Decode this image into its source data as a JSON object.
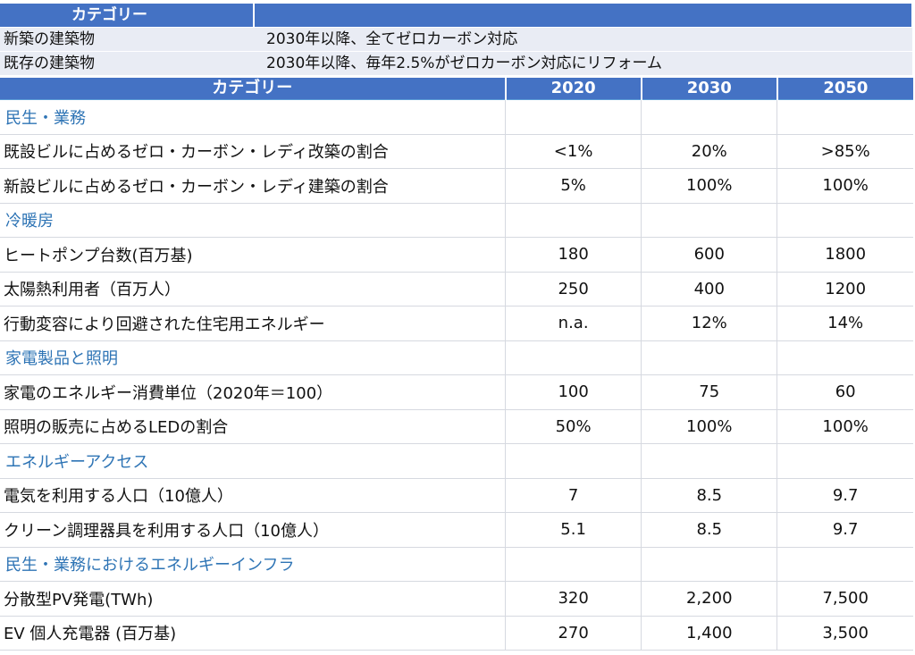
{
  "top_table": {
    "header": "カテゴリー",
    "rows": [
      {
        "label": "新築の建築物",
        "value": "2030年以降、全てゼロカーボン対応"
      },
      {
        "label": "既存の建築物",
        "value": "2030年以降、毎年2.5%がゼロカーボン対応にリフォーム"
      }
    ]
  },
  "main_table": {
    "headers": [
      "カテゴリー",
      "2020",
      "2030",
      "2050"
    ],
    "sections": [
      {
        "title": "民生・業務",
        "rows": [
          {
            "label": "既設ビルに占めるゼロ・カーボン・レディ改築の割合",
            "v2020": "<1%",
            "v2030": "20%",
            "v2050": ">85%"
          },
          {
            "label": "新設ビルに占めるゼロ・カーボン・レディ建築の割合",
            "v2020": "5%",
            "v2030": "100%",
            "v2050": "100%"
          }
        ]
      },
      {
        "title": "冷暖房",
        "rows": [
          {
            "label": "ヒートポンプ台数(百万基)",
            "v2020": "180",
            "v2030": "600",
            "v2050": "1800"
          },
          {
            "label": "太陽熱利用者（百万人）",
            "v2020": "250",
            "v2030": "400",
            "v2050": "1200"
          },
          {
            "label": "行動変容により回避された住宅用エネルギー",
            "v2020": "n.a.",
            "v2030": "12%",
            "v2050": "14%"
          }
        ]
      },
      {
        "title": "家電製品と照明",
        "rows": [
          {
            "label": "家電のエネルギー消費単位（2020年＝100）",
            "v2020": "100",
            "v2030": "75",
            "v2050": "60"
          },
          {
            "label": "照明の販売に占めるLEDの割合",
            "v2020": "50%",
            "v2030": "100%",
            "v2050": "100%"
          }
        ]
      },
      {
        "title": "エネルギーアクセス",
        "rows": [
          {
            "label": "電気を利用する人口（10億人）",
            "v2020": "7",
            "v2030": "8.5",
            "v2050": "9.7"
          },
          {
            "label": "クリーン調理器具を利用する人口（10億人）",
            "v2020": "5.1",
            "v2030": "8.5",
            "v2050": "9.7"
          }
        ]
      },
      {
        "title": "民生・業務におけるエネルギーインフラ",
        "rows": [
          {
            "label": "分散型PV発電(TWh)",
            "v2020": "320",
            "v2030": "2,200",
            "v2050": "7,500"
          },
          {
            "label": "EV 個人充電器 (百万基)",
            "v2020": "270",
            "v2030": "1,400",
            "v2050": "3,500"
          }
        ]
      }
    ]
  },
  "colors": {
    "header_bg": "#4472c4",
    "section_text": "#2e74b5",
    "row_bg": "#e9ecf4"
  }
}
